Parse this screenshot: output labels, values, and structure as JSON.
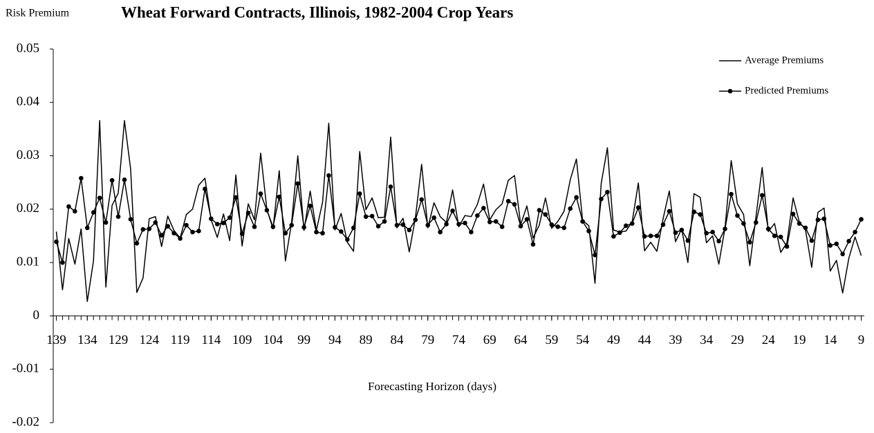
{
  "chart_data": {
    "type": "line",
    "title": "Wheat Forward Contracts, Illinois, 1982-2004 Crop Years",
    "y_label": "Risk Premium",
    "x_label": "Forecasting Horizon (days)",
    "x": [
      139,
      138,
      137,
      136,
      135,
      134,
      133,
      132,
      131,
      130,
      129,
      128,
      127,
      126,
      125,
      124,
      123,
      122,
      121,
      120,
      119,
      118,
      117,
      116,
      115,
      114,
      113,
      112,
      111,
      110,
      109,
      108,
      107,
      106,
      105,
      104,
      103,
      102,
      101,
      100,
      99,
      98,
      97,
      96,
      95,
      94,
      93,
      92,
      91,
      90,
      89,
      88,
      87,
      86,
      85,
      84,
      83,
      82,
      81,
      80,
      79,
      78,
      77,
      76,
      75,
      74,
      73,
      72,
      71,
      70,
      69,
      68,
      67,
      66,
      65,
      64,
      63,
      62,
      61,
      60,
      59,
      58,
      57,
      56,
      55,
      54,
      53,
      52,
      51,
      50,
      49,
      48,
      47,
      46,
      45,
      44,
      43,
      42,
      41,
      40,
      39,
      38,
      37,
      36,
      35,
      34,
      33,
      32,
      31,
      30,
      29,
      28,
      27,
      26,
      25,
      24,
      23,
      22,
      21,
      20,
      19,
      18,
      17,
      16,
      15,
      14,
      13,
      12,
      11,
      10,
      9
    ],
    "xlim": [
      139.5,
      8.5
    ],
    "xticks": [
      139,
      134,
      129,
      124,
      119,
      114,
      109,
      104,
      99,
      94,
      89,
      84,
      79,
      74,
      69,
      64,
      59,
      54,
      49,
      44,
      39,
      34,
      29,
      24,
      19,
      14,
      9
    ],
    "ylim": [
      -0.02,
      0.05
    ],
    "yticks": [
      0.05,
      0.04,
      0.03,
      0.02,
      0.01,
      0,
      -0.01,
      -0.02
    ],
    "grid": false,
    "legend": "upper right",
    "series": [
      {
        "name": "Average Premiums",
        "color": "#000000",
        "marker": "none",
        "values": [
          0.0158,
          0.0049,
          0.0145,
          0.0097,
          0.0163,
          0.0027,
          0.0103,
          0.0366,
          0.0054,
          0.0207,
          0.023,
          0.0366,
          0.0275,
          0.0044,
          0.0071,
          0.0182,
          0.0186,
          0.013,
          0.0187,
          0.016,
          0.0146,
          0.019,
          0.02,
          0.0245,
          0.0258,
          0.018,
          0.0147,
          0.0191,
          0.0141,
          0.0264,
          0.0131,
          0.021,
          0.018,
          0.0305,
          0.02,
          0.0163,
          0.0272,
          0.0103,
          0.0175,
          0.03,
          0.016,
          0.0234,
          0.016,
          0.0213,
          0.0361,
          0.0161,
          0.0192,
          0.0138,
          0.0121,
          0.0308,
          0.0199,
          0.0221,
          0.0184,
          0.0185,
          0.0335,
          0.0165,
          0.0183,
          0.012,
          0.0184,
          0.0284,
          0.0165,
          0.0212,
          0.0186,
          0.0175,
          0.0236,
          0.0167,
          0.0188,
          0.0186,
          0.0209,
          0.0247,
          0.018,
          0.0199,
          0.021,
          0.0254,
          0.0263,
          0.0171,
          0.0206,
          0.0146,
          0.017,
          0.0221,
          0.0164,
          0.0177,
          0.0196,
          0.0255,
          0.0294,
          0.0179,
          0.0169,
          0.0061,
          0.0248,
          0.0315,
          0.0161,
          0.0157,
          0.0159,
          0.0176,
          0.0249,
          0.0122,
          0.0138,
          0.0121,
          0.0182,
          0.0234,
          0.0139,
          0.0163,
          0.01,
          0.0229,
          0.0222,
          0.0137,
          0.015,
          0.0097,
          0.0165,
          0.0291,
          0.021,
          0.019,
          0.0094,
          0.0186,
          0.0278,
          0.0158,
          0.0173,
          0.0119,
          0.0137,
          0.0221,
          0.0176,
          0.0161,
          0.0091,
          0.0194,
          0.0202,
          0.0084,
          0.0104,
          0.0043,
          0.0108,
          0.0148,
          0.0113
        ]
      },
      {
        "name": "Predicted Premiums",
        "color": "#000000",
        "marker": "circle",
        "values": [
          0.0139,
          0.01,
          0.0205,
          0.0196,
          0.0258,
          0.0165,
          0.0194,
          0.0221,
          0.0175,
          0.0254,
          0.0186,
          0.0255,
          0.0181,
          0.0136,
          0.0162,
          0.0163,
          0.0175,
          0.0151,
          0.0168,
          0.0155,
          0.0145,
          0.017,
          0.0157,
          0.0159,
          0.0238,
          0.0182,
          0.0172,
          0.0174,
          0.0184,
          0.0222,
          0.0154,
          0.0193,
          0.0167,
          0.0229,
          0.0198,
          0.0167,
          0.0223,
          0.0155,
          0.017,
          0.0248,
          0.0166,
          0.0206,
          0.0157,
          0.0155,
          0.0263,
          0.0166,
          0.0158,
          0.0143,
          0.0165,
          0.0229,
          0.0186,
          0.0187,
          0.0168,
          0.0177,
          0.0242,
          0.017,
          0.0171,
          0.0161,
          0.018,
          0.0218,
          0.017,
          0.0184,
          0.0157,
          0.0172,
          0.0197,
          0.0172,
          0.0174,
          0.0157,
          0.0188,
          0.0202,
          0.0176,
          0.0177,
          0.0167,
          0.0215,
          0.0209,
          0.0168,
          0.0181,
          0.0134,
          0.0198,
          0.019,
          0.0171,
          0.0167,
          0.0165,
          0.0201,
          0.0222,
          0.0177,
          0.0159,
          0.0114,
          0.0219,
          0.0232,
          0.0149,
          0.0156,
          0.0169,
          0.0173,
          0.0203,
          0.0149,
          0.015,
          0.015,
          0.0171,
          0.0196,
          0.0156,
          0.0161,
          0.0141,
          0.0195,
          0.019,
          0.0155,
          0.0157,
          0.014,
          0.0163,
          0.0228,
          0.0188,
          0.0173,
          0.0138,
          0.0175,
          0.0226,
          0.0163,
          0.015,
          0.0148,
          0.013,
          0.0191,
          0.0173,
          0.0165,
          0.0141,
          0.018,
          0.0182,
          0.0132,
          0.0135,
          0.0116,
          0.014,
          0.0157,
          0.0181
        ]
      }
    ]
  }
}
